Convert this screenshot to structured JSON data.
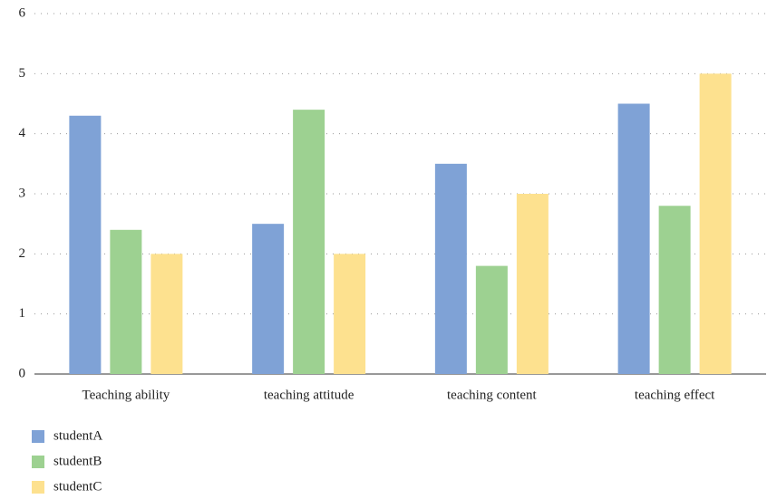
{
  "chart_data": {
    "type": "bar",
    "categories": [
      "Teaching ability",
      "teaching attitude",
      "teaching content",
      "teaching effect"
    ],
    "series": [
      {
        "name": "studentA",
        "color": "#7fa2d6",
        "values": [
          4.3,
          2.5,
          3.5,
          4.5
        ]
      },
      {
        "name": "studentB",
        "color": "#9dd191",
        "values": [
          2.4,
          4.4,
          1.8,
          2.8
        ]
      },
      {
        "name": "studentC",
        "color": "#fde18f",
        "values": [
          2.0,
          2.0,
          3.0,
          5.0
        ]
      }
    ],
    "ylim": [
      0,
      6
    ],
    "yticks": [
      0,
      1,
      2,
      3,
      4,
      5,
      6
    ],
    "grid": true,
    "legend": "bottom-left"
  }
}
